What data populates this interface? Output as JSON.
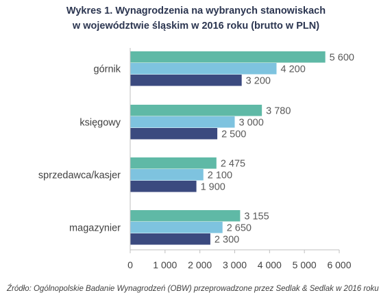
{
  "chart_data": {
    "type": "bar",
    "orientation": "horizontal",
    "title": "Wykres 1. Wynagrodzenia na wybranych stanowiskach",
    "subtitle": "w województwie śląskim w 2016 roku (brutto w PLN)",
    "categories": [
      "górnik",
      "księgowy",
      "sprzedawca/kasjer",
      "magazynier"
    ],
    "series": [
      {
        "color": "#5fb9a6",
        "values": [
          5600,
          3780,
          2475,
          3155
        ],
        "labels": [
          "5 600",
          "3 780",
          "2 475",
          "3 155"
        ]
      },
      {
        "color": "#7ec3df",
        "values": [
          4200,
          3000,
          2100,
          2650
        ],
        "labels": [
          "4 200",
          "3 000",
          "2 100",
          "2 650"
        ]
      },
      {
        "color": "#3b4a7f",
        "values": [
          3200,
          2500,
          1900,
          2300
        ],
        "labels": [
          "3 200",
          "2 500",
          "1 900",
          "2 300"
        ]
      }
    ],
    "xlim": [
      0,
      6000
    ],
    "xticks": [
      0,
      1000,
      2000,
      3000,
      4000,
      5000,
      6000
    ],
    "xtick_labels": [
      "0",
      "1 000",
      "2 000",
      "3 000",
      "4 000",
      "5 000",
      "6 000"
    ],
    "grid": false,
    "legend": "none",
    "source": "Źródło: Ogólnopolskie Badanie Wynagrodzeń (OBW) przeprowadzone przez Sedlak & Sedlak w 2016 roku"
  }
}
